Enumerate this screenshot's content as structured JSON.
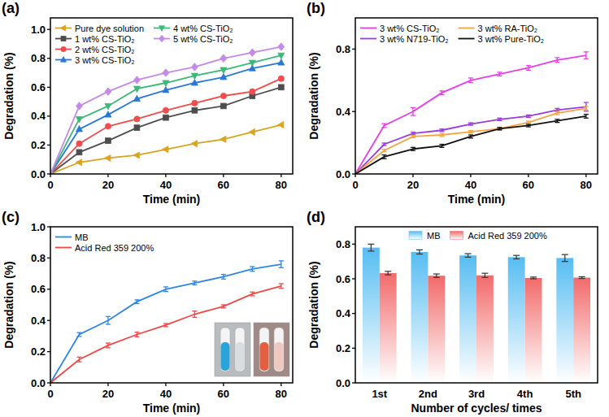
{
  "chart_data": [
    {
      "type": "line",
      "title": "(a)",
      "x_label": "Time (min)",
      "y_label": "Degradation (%)",
      "x": [
        0,
        10,
        20,
        30,
        40,
        50,
        60,
        70,
        80
      ],
      "xlim": [
        0,
        84
      ],
      "xticks": [
        0,
        20,
        40,
        60,
        80
      ],
      "ylim": [
        0,
        1.08
      ],
      "yticks": [
        {
          "value": 0,
          "label": "0.0"
        },
        0.2,
        0.4,
        0.6,
        0.8,
        {
          "value": 1,
          "label": "1.0"
        }
      ],
      "grid": false,
      "legend": "upper left",
      "series": [
        {
          "name": "Pure dye solution",
          "color": "#d9a520",
          "marker": "triangle-left",
          "values": [
            0,
            0.08,
            0.11,
            0.13,
            0.17,
            0.21,
            0.24,
            0.29,
            0.34
          ]
        },
        {
          "name": "1 wt% CS-TiO₂",
          "color": "#4d4d4d",
          "marker": "square",
          "values": [
            0,
            0.15,
            0.23,
            0.32,
            0.39,
            0.44,
            0.47,
            0.54,
            0.6
          ]
        },
        {
          "name": "2 wt% CS-TiO₂",
          "color": "#f24d4d",
          "marker": "circle",
          "values": [
            0,
            0.21,
            0.33,
            0.38,
            0.44,
            0.49,
            0.54,
            0.57,
            0.66
          ]
        },
        {
          "name": "3 wt% CS-TiO₂",
          "color": "#2878d8",
          "marker": "triangle-up",
          "values": [
            0,
            0.31,
            0.41,
            0.52,
            0.58,
            0.63,
            0.67,
            0.73,
            0.77
          ]
        },
        {
          "name": "4 wt% CS-TiO₂",
          "color": "#3cb878",
          "marker": "triangle-down",
          "values": [
            0,
            0.38,
            0.47,
            0.59,
            0.63,
            0.68,
            0.72,
            0.77,
            0.82
          ]
        },
        {
          "name": "5 wt% CS-TiO₂",
          "color": "#c58ae8",
          "marker": "diamond",
          "values": [
            0,
            0.47,
            0.57,
            0.65,
            0.7,
            0.74,
            0.8,
            0.84,
            0.88
          ]
        }
      ]
    },
    {
      "type": "line",
      "title": "(b)",
      "x_label": "Time (min)",
      "y_label": "Degradation (%)",
      "x": [
        0,
        10,
        20,
        30,
        40,
        50,
        60,
        70,
        80
      ],
      "xlim": [
        0,
        84
      ],
      "xticks": [
        0,
        20,
        40,
        60,
        80
      ],
      "ylim": [
        0,
        1
      ],
      "yticks": [
        {
          "value": 0,
          "label": "0.0"
        },
        0.4,
        0.8
      ],
      "grid": false,
      "legend": "upper left",
      "series": [
        {
          "name": "3 wt% CS-TiO₂",
          "color": "#e83ee8",
          "values": [
            0,
            0.31,
            0.4,
            0.52,
            0.6,
            0.64,
            0.68,
            0.73,
            0.76
          ],
          "errors": [
            0,
            0.012,
            0.025,
            0.012,
            0.015,
            0.012,
            0.015,
            0.015,
            0.022
          ]
        },
        {
          "name": "3 wt% N719-TiO₂",
          "color": "#9a3ce0",
          "values": [
            0,
            0.19,
            0.26,
            0.28,
            0.32,
            0.35,
            0.37,
            0.41,
            0.43
          ],
          "errors": [
            0,
            0.008,
            0.008,
            0.008,
            0.008,
            0.008,
            0.008,
            0.01,
            0.028
          ]
        },
        {
          "name": "3 wt% RA-TiO₂",
          "color": "#f5a442",
          "values": [
            0,
            0.15,
            0.24,
            0.25,
            0.27,
            0.29,
            0.33,
            0.39,
            0.42
          ],
          "errors": [
            0,
            0.008,
            0.008,
            0.01,
            0.008,
            0.008,
            0.008,
            0.01,
            0.012
          ]
        },
        {
          "name": "3 wt% Pure-TiO₂",
          "color": "#111111",
          "values": [
            0,
            0.11,
            0.16,
            0.18,
            0.24,
            0.29,
            0.31,
            0.34,
            0.37
          ],
          "errors": [
            0,
            0.012,
            0.01,
            0.01,
            0.01,
            0.008,
            0.008,
            0.01,
            0.012
          ]
        }
      ]
    },
    {
      "type": "line",
      "title": "(c)",
      "x_label": "Time (min)",
      "y_label": "Degradation (%)",
      "x": [
        0,
        10,
        20,
        30,
        40,
        50,
        60,
        70,
        80
      ],
      "xlim": [
        0,
        84
      ],
      "xticks": [
        0,
        20,
        40,
        60,
        80
      ],
      "ylim": [
        0,
        1
      ],
      "yticks": [
        {
          "value": 0,
          "label": "0.0"
        },
        0.2,
        0.4,
        0.6,
        0.8,
        {
          "value": 1,
          "label": "1.0"
        }
      ],
      "grid": false,
      "legend": "upper left",
      "series": [
        {
          "name": "MB",
          "color": "#2e86e8",
          "values": [
            0,
            0.31,
            0.4,
            0.52,
            0.6,
            0.64,
            0.68,
            0.73,
            0.76
          ],
          "errors": [
            0,
            0.012,
            0.025,
            0.012,
            0.015,
            0.012,
            0.015,
            0.015,
            0.022
          ]
        },
        {
          "name": "Acid Red 359 200%",
          "color": "#f04848",
          "values": [
            0,
            0.15,
            0.24,
            0.31,
            0.37,
            0.44,
            0.49,
            0.57,
            0.62
          ],
          "errors": [
            0,
            0.015,
            0.015,
            0.015,
            0.01,
            0.02,
            0.01,
            0.012,
            0.015
          ]
        }
      ]
    },
    {
      "type": "bar",
      "title": "(d)",
      "x_label": "Number of cycles/ times",
      "y_label": "Degradation (%)",
      "categories": [
        "1st",
        "2nd",
        "3rd",
        "4th",
        "5th"
      ],
      "ylim": [
        0,
        0.9
      ],
      "yticks": [
        {
          "value": 0,
          "label": "0.0"
        },
        0.2,
        0.4,
        0.6,
        0.8
      ],
      "grid": false,
      "legend": "upper center",
      "series": [
        {
          "name": "MB",
          "color": "#56bdf2",
          "values": [
            0.78,
            0.755,
            0.735,
            0.725,
            0.72
          ],
          "errors": [
            0.02,
            0.012,
            0.01,
            0.01,
            0.02
          ]
        },
        {
          "name": "Acid Red 359 200%",
          "color": "#f26a6a",
          "values": [
            0.633,
            0.618,
            0.62,
            0.605,
            0.607
          ],
          "errors": [
            0.01,
            0.01,
            0.012,
            0.005,
            0.005
          ]
        }
      ]
    }
  ]
}
